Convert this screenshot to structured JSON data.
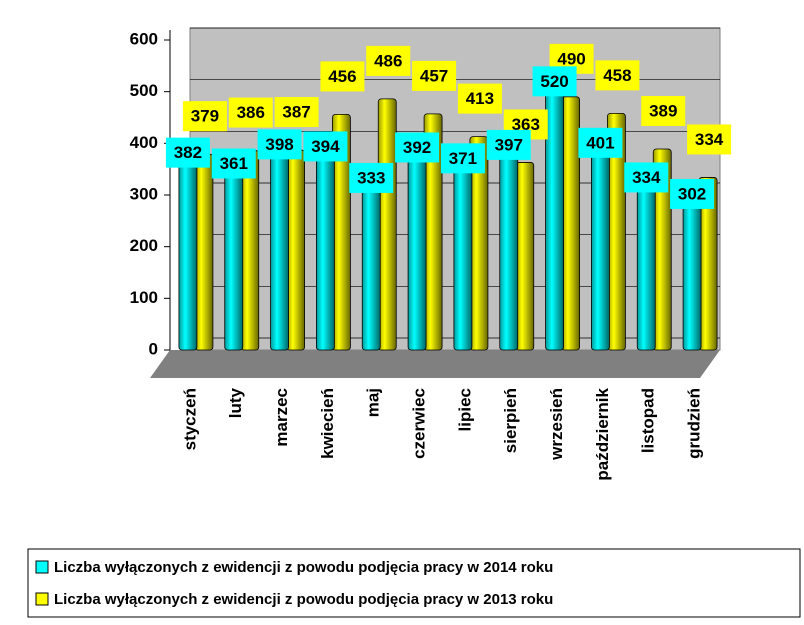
{
  "chart_data": {
    "type": "bar",
    "categories": [
      "styczeń",
      "luty",
      "marzec",
      "kwiecień",
      "maj",
      "czerwiec",
      "lipiec",
      "sierpień",
      "wrzesień",
      "październik",
      "listopad",
      "grudzień"
    ],
    "series": [
      {
        "name": "Liczba wyłączonych z ewidencji z powodu podjęcia pracy w 2014 roku",
        "color": "#00ffff",
        "values": [
          382,
          361,
          398,
          394,
          333,
          392,
          371,
          397,
          520,
          401,
          334,
          302
        ]
      },
      {
        "name": "Liczba wyłączonych z ewidencji z powodu podjęcia pracy w 2013 roku",
        "color": "#ffff00",
        "values": [
          379,
          386,
          387,
          456,
          486,
          457,
          413,
          363,
          490,
          458,
          389,
          334
        ]
      }
    ],
    "ylim": [
      0,
      600
    ],
    "yticks": [
      0,
      100,
      200,
      300,
      400,
      500,
      600
    ],
    "grid": true,
    "legend": "bottom"
  }
}
